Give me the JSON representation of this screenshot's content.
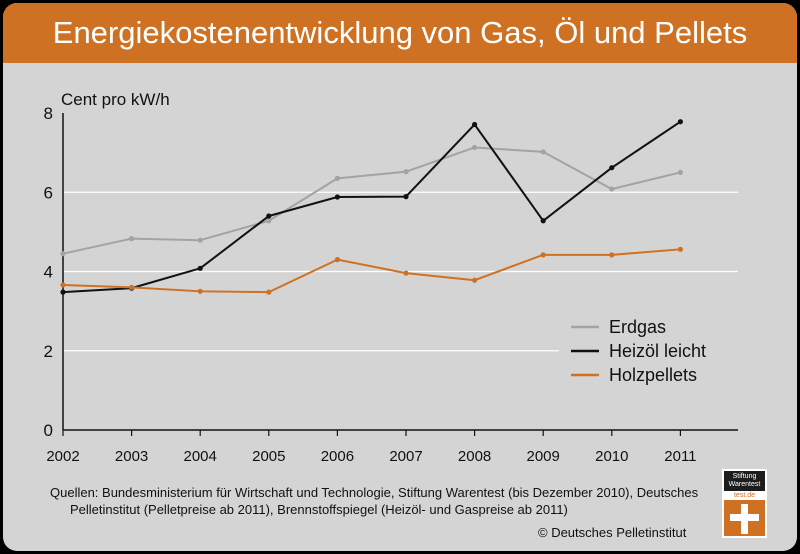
{
  "title": "Energiekostenentwicklung von Gas, Öl und Pellets",
  "chart_data": {
    "type": "line",
    "ylabel": "Cent pro kW/h",
    "xlabel": "",
    "x": [
      "2002",
      "2003",
      "2004",
      "2005",
      "2006",
      "2007",
      "2008",
      "2009",
      "2010",
      "2011"
    ],
    "ylim": [
      0,
      8
    ],
    "yticks": [
      0,
      2,
      4,
      6,
      8
    ],
    "grid": "horizontal",
    "legend_position": "bottom-right",
    "series": [
      {
        "name": "Erdgas",
        "color": "#a3a3a3",
        "values": [
          4.45,
          4.83,
          4.79,
          5.28,
          6.35,
          6.52,
          7.13,
          7.02,
          6.08,
          6.5
        ]
      },
      {
        "name": "Heizöl leicht",
        "color": "#111111",
        "values": [
          3.48,
          3.58,
          4.08,
          5.4,
          5.88,
          5.89,
          7.71,
          5.28,
          6.62,
          7.78
        ]
      },
      {
        "name": "Holzpellets",
        "color": "#cf7122",
        "values": [
          3.66,
          3.6,
          3.5,
          3.48,
          4.3,
          3.96,
          3.78,
          4.42,
          4.42,
          4.56
        ]
      }
    ]
  },
  "source": {
    "line1": "Quellen: Bundesministerium für Wirtschaft und Technologie, Stiftung Warentest (bis Dezember 2010), Deutsches",
    "line2": "Pelletinstitut (Pelletpreise ab 2011), Brennstoffspiegel (Heizöl- und Gaspreise ab 2011)"
  },
  "copyright": "© Deutsches Pelletinstitut",
  "logo": {
    "line1": "Stiftung",
    "line2": "Warentest",
    "url": "test.de"
  },
  "colors": {
    "accent": "#cf7122",
    "background": "#d4d4d4",
    "frame": "#000000"
  }
}
